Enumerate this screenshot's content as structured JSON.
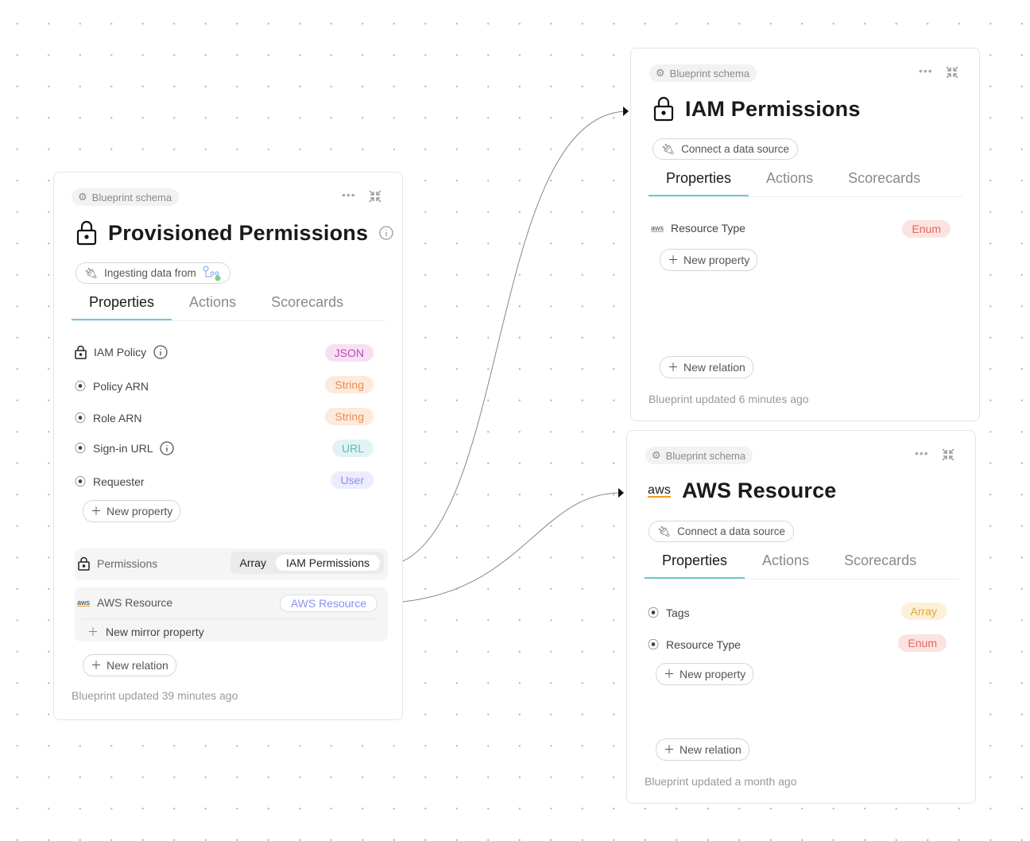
{
  "cards": [
    {
      "chip": "Blueprint schema",
      "title": "Provisioned Permissions",
      "source": "Ingesting data from",
      "tabs": [
        "Properties",
        "Actions",
        "Scorecards"
      ],
      "properties": [
        {
          "label": "IAM Policy",
          "type": "JSON",
          "icon": "lock-icon",
          "info": true
        },
        {
          "label": "Policy ARN",
          "type": "String",
          "icon": "radio-icon"
        },
        {
          "label": "Role ARN",
          "type": "String",
          "icon": "radio-icon"
        },
        {
          "label": "Sign-in URL",
          "type": "URL",
          "icon": "radio-icon",
          "info": true
        },
        {
          "label": "Requester",
          "type": "User",
          "icon": "radio-icon"
        }
      ],
      "new_property": "New property",
      "relations": [
        {
          "label": "Permissions",
          "kind": "Array",
          "target": "IAM Permissions"
        },
        {
          "label": "AWS Resource",
          "target": "AWS Resource"
        }
      ],
      "new_mirror": "New mirror property",
      "new_relation": "New relation",
      "footer": "Blueprint updated 39 minutes ago"
    },
    {
      "chip": "Blueprint schema",
      "title": "IAM Permissions",
      "source": "Connect a data source",
      "tabs": [
        "Properties",
        "Actions",
        "Scorecards"
      ],
      "properties": [
        {
          "label": "Resource Type",
          "type": "Enum",
          "icon": "aws-icon"
        }
      ],
      "new_property": "New property",
      "new_relation": "New relation",
      "footer": "Blueprint updated 6 minutes ago"
    },
    {
      "chip": "Blueprint schema",
      "title": "AWS Resource",
      "source": "Connect a data source",
      "tabs": [
        "Properties",
        "Actions",
        "Scorecards"
      ],
      "properties": [
        {
          "label": "Tags",
          "type": "Array",
          "icon": "radio-icon"
        },
        {
          "label": "Resource Type",
          "type": "Enum",
          "icon": "radio-icon"
        }
      ],
      "new_property": "New property",
      "new_relation": "New relation",
      "footer": "Blueprint updated a month ago"
    }
  ],
  "aws_logo": "aws",
  "colors": {
    "tab_active": "#6cc9dd",
    "json": "#c943c0",
    "string": "#ef8b52",
    "url": "#5fb6c4",
    "user": "#8e8ef2",
    "enum": "#e7665b",
    "array": "#e0a63c"
  }
}
